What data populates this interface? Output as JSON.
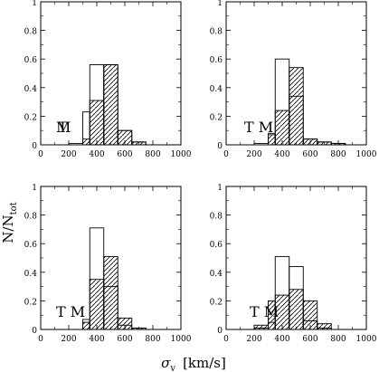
{
  "chart_data": {
    "type": "bar",
    "layout": "2x2 grid of histograms",
    "x_ticks": [
      0,
      200,
      400,
      600,
      800,
      1000
    ],
    "y_ticks": [
      0,
      0.2,
      0.4,
      0.6,
      0.8,
      1
    ],
    "xlim": [
      0,
      1000
    ],
    "ylim": [
      0,
      1
    ],
    "bin_edges": [
      0,
      100,
      200,
      300,
      350,
      450,
      550,
      650,
      750,
      850,
      950,
      1000
    ],
    "xlabel_symbol": "σ",
    "xlabel_subscript": "v",
    "xlabel_units": "[km/s]",
    "ylabel_main": "N/N",
    "ylabel_subscript": "tot",
    "grid": false,
    "panels": [
      {
        "annotation": "M",
        "annotation2": "T",
        "annotation_overlap": true,
        "series": [
          {
            "style": "open",
            "values": [
              0,
              0,
              0.01,
              0.23,
              0.56,
              0.56,
              0.1,
              0.02,
              0,
              0,
              0
            ]
          },
          {
            "style": "hatched",
            "values": [
              0,
              0,
              0,
              0.04,
              0.31,
              0.56,
              0.1,
              0.02,
              0,
              0,
              0
            ]
          }
        ]
      },
      {
        "annotation": "T M",
        "series": [
          {
            "style": "open",
            "values": [
              0,
              0,
              0.01,
              0.08,
              0.6,
              0.34,
              0.04,
              0.02,
              0.01,
              0,
              0
            ]
          },
          {
            "style": "hatched",
            "values": [
              0,
              0,
              0,
              0.07,
              0.24,
              0.54,
              0.04,
              0.02,
              0.01,
              0,
              0
            ]
          }
        ]
      },
      {
        "annotation": "T M",
        "series": [
          {
            "style": "open",
            "values": [
              0,
              0,
              0,
              0.07,
              0.71,
              0.3,
              0.03,
              0.01,
              0,
              0,
              0
            ]
          },
          {
            "style": "hatched",
            "values": [
              0,
              0,
              0,
              0.05,
              0.35,
              0.51,
              0.08,
              0.01,
              0,
              0,
              0
            ]
          }
        ]
      },
      {
        "annotation": "T M",
        "series": [
          {
            "style": "open",
            "values": [
              0,
              0,
              0.01,
              0.05,
              0.51,
              0.44,
              0.06,
              0.01,
              0,
              0,
              0
            ]
          },
          {
            "style": "hatched",
            "values": [
              0,
              0,
              0.03,
              0.2,
              0.24,
              0.28,
              0.2,
              0.04,
              0,
              0,
              0
            ]
          }
        ]
      }
    ]
  }
}
